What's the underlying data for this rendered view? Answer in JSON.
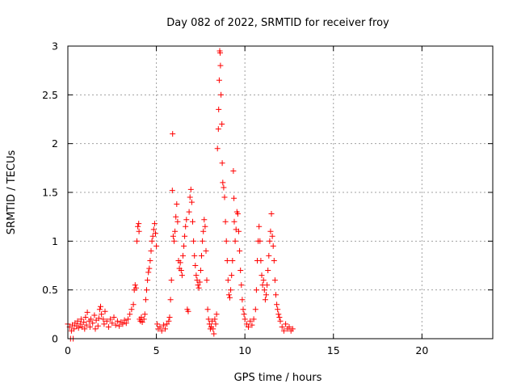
{
  "chart_data": {
    "type": "scatter",
    "title": "Day 082 of 2022, SRMTID for receiver froy",
    "xlabel": "GPS time / hours",
    "ylabel": "SRMTID / TECUs",
    "xlim": [
      0,
      24
    ],
    "ylim": [
      0,
      3
    ],
    "xticks": [
      0,
      5,
      10,
      15,
      20
    ],
    "xtick_labels": [
      "0",
      "5",
      "10",
      "15",
      "20"
    ],
    "yticks": [
      0,
      0.5,
      1,
      1.5,
      2,
      2.5,
      3
    ],
    "ytick_labels": [
      "0",
      "0.5",
      "1",
      "1.5",
      "2",
      "2.5",
      "3"
    ],
    "grid": true,
    "marker": "+",
    "color": "#ff0000",
    "series": [
      {
        "name": "SRMTID",
        "points": [
          [
            0.0,
            0.15
          ],
          [
            0.1,
            0.12
          ],
          [
            0.15,
            0.0
          ],
          [
            0.2,
            0.08
          ],
          [
            0.25,
            0.14
          ],
          [
            0.3,
            0.0
          ],
          [
            0.35,
            0.1
          ],
          [
            0.4,
            0.16
          ],
          [
            0.5,
            0.13
          ],
          [
            0.55,
            0.18
          ],
          [
            0.6,
            0.11
          ],
          [
            0.7,
            0.15
          ],
          [
            0.75,
            0.2
          ],
          [
            0.8,
            0.12
          ],
          [
            0.9,
            0.17
          ],
          [
            0.95,
            0.1
          ],
          [
            1.0,
            0.22
          ],
          [
            1.05,
            0.14
          ],
          [
            1.1,
            0.27
          ],
          [
            1.2,
            0.18
          ],
          [
            1.25,
            0.12
          ],
          [
            1.3,
            0.2
          ],
          [
            1.4,
            0.16
          ],
          [
            1.5,
            0.24
          ],
          [
            1.55,
            0.1
          ],
          [
            1.6,
            0.19
          ],
          [
            1.7,
            0.13
          ],
          [
            1.75,
            0.21
          ],
          [
            1.8,
            0.3
          ],
          [
            1.85,
            0.33
          ],
          [
            1.9,
            0.25
          ],
          [
            2.0,
            0.2
          ],
          [
            2.05,
            0.15
          ],
          [
            2.1,
            0.28
          ],
          [
            2.2,
            0.18
          ],
          [
            2.3,
            0.12
          ],
          [
            2.4,
            0.2
          ],
          [
            2.5,
            0.16
          ],
          [
            2.6,
            0.22
          ],
          [
            2.7,
            0.14
          ],
          [
            2.8,
            0.18
          ],
          [
            2.9,
            0.13
          ],
          [
            3.0,
            0.17
          ],
          [
            3.1,
            0.15
          ],
          [
            3.2,
            0.19
          ],
          [
            3.3,
            0.16
          ],
          [
            3.4,
            0.2
          ],
          [
            3.5,
            0.25
          ],
          [
            3.6,
            0.3
          ],
          [
            3.7,
            0.35
          ],
          [
            3.75,
            0.5
          ],
          [
            3.8,
            0.55
          ],
          [
            3.85,
            0.52
          ],
          [
            3.9,
            1.0
          ],
          [
            3.95,
            1.15
          ],
          [
            4.0,
            1.18
          ],
          [
            4.02,
            1.1
          ],
          [
            4.05,
            0.2
          ],
          [
            4.1,
            0.18
          ],
          [
            4.15,
            0.22
          ],
          [
            4.2,
            0.17
          ],
          [
            4.3,
            0.2
          ],
          [
            4.35,
            0.25
          ],
          [
            4.4,
            0.4
          ],
          [
            4.45,
            0.5
          ],
          [
            4.5,
            0.6
          ],
          [
            4.55,
            0.68
          ],
          [
            4.6,
            0.72
          ],
          [
            4.65,
            0.8
          ],
          [
            4.7,
            0.9
          ],
          [
            4.75,
            1.0
          ],
          [
            4.8,
            1.05
          ],
          [
            4.85,
            1.12
          ],
          [
            4.9,
            1.18
          ],
          [
            4.95,
            1.08
          ],
          [
            5.0,
            0.95
          ],
          [
            5.05,
            0.15
          ],
          [
            5.1,
            0.1
          ],
          [
            5.2,
            0.12
          ],
          [
            5.3,
            0.08
          ],
          [
            5.4,
            0.14
          ],
          [
            5.5,
            0.1
          ],
          [
            5.6,
            0.15
          ],
          [
            5.7,
            0.18
          ],
          [
            5.75,
            0.22
          ],
          [
            5.8,
            0.4
          ],
          [
            5.85,
            0.6
          ],
          [
            5.9,
            1.52
          ],
          [
            5.92,
            2.1
          ],
          [
            5.95,
            1.05
          ],
          [
            6.0,
            1.0
          ],
          [
            6.05,
            1.1
          ],
          [
            6.1,
            1.25
          ],
          [
            6.15,
            1.38
          ],
          [
            6.2,
            1.2
          ],
          [
            6.25,
            0.8
          ],
          [
            6.3,
            0.72
          ],
          [
            6.35,
            0.78
          ],
          [
            6.4,
            0.7
          ],
          [
            6.45,
            0.65
          ],
          [
            6.5,
            0.85
          ],
          [
            6.55,
            0.95
          ],
          [
            6.6,
            1.05
          ],
          [
            6.65,
            1.15
          ],
          [
            6.7,
            1.22
          ],
          [
            6.75,
            0.3
          ],
          [
            6.8,
            0.28
          ],
          [
            6.85,
            1.3
          ],
          [
            6.9,
            1.45
          ],
          [
            6.95,
            1.53
          ],
          [
            7.0,
            1.4
          ],
          [
            7.05,
            1.2
          ],
          [
            7.1,
            1.0
          ],
          [
            7.15,
            0.85
          ],
          [
            7.2,
            0.75
          ],
          [
            7.25,
            0.65
          ],
          [
            7.3,
            0.6
          ],
          [
            7.35,
            0.55
          ],
          [
            7.4,
            0.52
          ],
          [
            7.45,
            0.58
          ],
          [
            7.5,
            0.7
          ],
          [
            7.55,
            0.85
          ],
          [
            7.6,
            1.0
          ],
          [
            7.65,
            1.1
          ],
          [
            7.7,
            1.22
          ],
          [
            7.75,
            1.15
          ],
          [
            7.8,
            0.9
          ],
          [
            7.85,
            0.6
          ],
          [
            7.9,
            0.3
          ],
          [
            7.95,
            0.2
          ],
          [
            8.0,
            0.15
          ],
          [
            8.05,
            0.1
          ],
          [
            8.1,
            0.12
          ],
          [
            8.15,
            0.18
          ],
          [
            8.2,
            0.1
          ],
          [
            8.25,
            0.05
          ],
          [
            8.3,
            0.2
          ],
          [
            8.35,
            0.15
          ],
          [
            8.4,
            0.25
          ],
          [
            8.45,
            1.95
          ],
          [
            8.5,
            2.15
          ],
          [
            8.52,
            2.35
          ],
          [
            8.55,
            2.65
          ],
          [
            8.58,
            2.95
          ],
          [
            8.6,
            2.93
          ],
          [
            8.62,
            2.8
          ],
          [
            8.65,
            2.5
          ],
          [
            8.7,
            2.2
          ],
          [
            8.72,
            1.8
          ],
          [
            8.75,
            1.6
          ],
          [
            8.8,
            1.55
          ],
          [
            8.85,
            1.45
          ],
          [
            8.9,
            1.2
          ],
          [
            8.95,
            1.0
          ],
          [
            9.0,
            0.8
          ],
          [
            9.05,
            0.6
          ],
          [
            9.1,
            0.45
          ],
          [
            9.15,
            0.42
          ],
          [
            9.2,
            0.5
          ],
          [
            9.25,
            0.65
          ],
          [
            9.3,
            0.8
          ],
          [
            9.35,
            1.72
          ],
          [
            9.38,
            1.44
          ],
          [
            9.4,
            1.2
          ],
          [
            9.45,
            1.0
          ],
          [
            9.5,
            1.12
          ],
          [
            9.55,
            1.3
          ],
          [
            9.6,
            1.28
          ],
          [
            9.65,
            1.1
          ],
          [
            9.7,
            0.9
          ],
          [
            9.75,
            0.7
          ],
          [
            9.8,
            0.55
          ],
          [
            9.85,
            0.4
          ],
          [
            9.9,
            0.3
          ],
          [
            9.95,
            0.25
          ],
          [
            10.0,
            0.2
          ],
          [
            10.1,
            0.15
          ],
          [
            10.2,
            0.12
          ],
          [
            10.3,
            0.18
          ],
          [
            10.4,
            0.14
          ],
          [
            10.5,
            0.2
          ],
          [
            10.6,
            0.3
          ],
          [
            10.65,
            0.5
          ],
          [
            10.7,
            0.8
          ],
          [
            10.75,
            1.0
          ],
          [
            10.8,
            1.15
          ],
          [
            10.85,
            1.0
          ],
          [
            10.9,
            0.8
          ],
          [
            10.95,
            0.65
          ],
          [
            11.0,
            0.55
          ],
          [
            11.05,
            0.6
          ],
          [
            11.1,
            0.5
          ],
          [
            11.15,
            0.4
          ],
          [
            11.2,
            0.45
          ],
          [
            11.25,
            0.55
          ],
          [
            11.3,
            0.7
          ],
          [
            11.35,
            0.85
          ],
          [
            11.4,
            1.0
          ],
          [
            11.45,
            1.1
          ],
          [
            11.5,
            1.28
          ],
          [
            11.55,
            1.05
          ],
          [
            11.6,
            0.95
          ],
          [
            11.65,
            0.8
          ],
          [
            11.7,
            0.6
          ],
          [
            11.75,
            0.45
          ],
          [
            11.8,
            0.35
          ],
          [
            11.85,
            0.3
          ],
          [
            11.9,
            0.25
          ],
          [
            11.95,
            0.22
          ],
          [
            12.0,
            0.18
          ],
          [
            12.1,
            0.12
          ],
          [
            12.2,
            0.08
          ],
          [
            12.3,
            0.15
          ],
          [
            12.4,
            0.1
          ],
          [
            12.5,
            0.12
          ],
          [
            12.6,
            0.08
          ],
          [
            12.7,
            0.1
          ]
        ]
      }
    ]
  }
}
